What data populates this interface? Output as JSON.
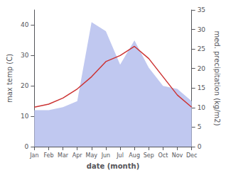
{
  "chart_data": {
    "type": "line",
    "categories": [
      "Jan",
      "Feb",
      "Mar",
      "Apr",
      "May",
      "Jun",
      "Jul",
      "Aug",
      "Sep",
      "Oct",
      "Nov",
      "Dec"
    ],
    "series": [
      {
        "type": "area",
        "color": "#c0c8f0",
        "values": [
          12,
          12,
          13,
          15,
          41,
          38,
          27,
          35,
          26,
          20,
          19,
          15
        ]
      },
      {
        "type": "line",
        "color": "#cc3333",
        "values": [
          13,
          14,
          16,
          19,
          23,
          28,
          30,
          33,
          29,
          23,
          17,
          13
        ]
      }
    ],
    "xlabel": "date (month)",
    "ylabel": "max temp (C)",
    "y2label": "med. precipitation (kg/m2)",
    "ylim": [
      0,
      45
    ],
    "yticks": [
      0,
      10,
      20,
      30,
      40
    ],
    "y2lim": [
      0,
      35
    ],
    "y2ticks": [
      0,
      5,
      10,
      15,
      20,
      25,
      30,
      35
    ],
    "grid": false
  }
}
